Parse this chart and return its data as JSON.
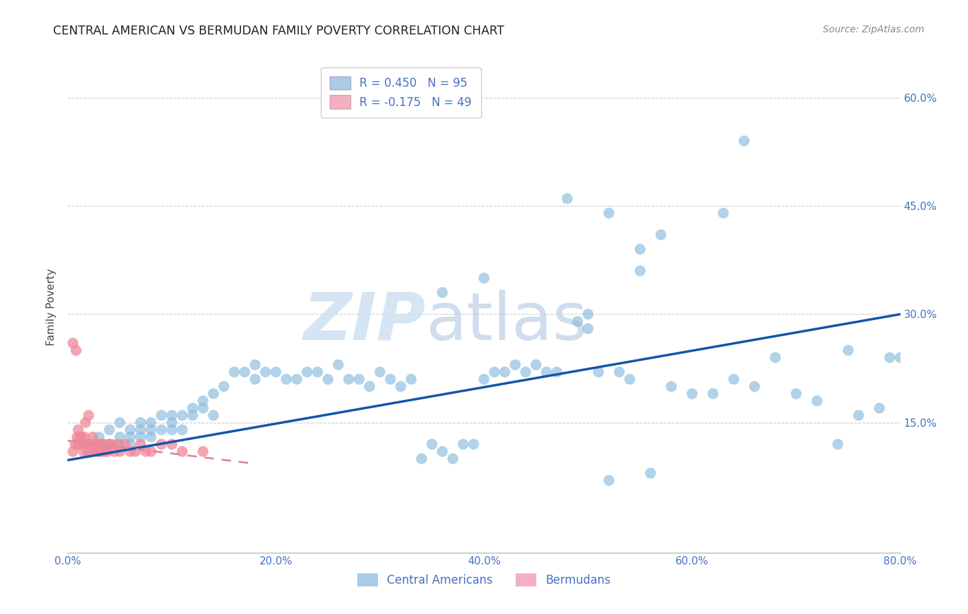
{
  "title": "CENTRAL AMERICAN VS BERMUDAN FAMILY POVERTY CORRELATION CHART",
  "source": "Source: ZipAtlas.com",
  "ylabel": "Family Poverty",
  "xlim": [
    0.0,
    0.8
  ],
  "ylim": [
    -0.03,
    0.65
  ],
  "xtick_vals": [
    0.0,
    0.2,
    0.4,
    0.6,
    0.8
  ],
  "xtick_labels": [
    "0.0%",
    "20.0%",
    "40.0%",
    "60.0%",
    "80.0%"
  ],
  "ytick_vals": [
    0.15,
    0.3,
    0.45,
    0.6
  ],
  "ytick_labels": [
    "15.0%",
    "30.0%",
    "45.0%",
    "60.0%"
  ],
  "R_blue": 0.45,
  "N_blue": 95,
  "R_pink": -0.175,
  "N_pink": 49,
  "blue_scatter_color": "#88bbdd",
  "pink_scatter_color": "#f08898",
  "blue_line_color": "#1155aa",
  "pink_line_color": "#e08898",
  "watermark_zip_color": "#ccdff0",
  "watermark_atlas_color": "#bbcfe8",
  "legend_box_color": "#a8cce4",
  "legend_pink_color": "#f4afc4",
  "tick_color": "#4472c4",
  "title_color": "#222222",
  "source_color": "#888888",
  "grid_color": "#cccccc",
  "blue_x": [
    0.02,
    0.03,
    0.03,
    0.04,
    0.04,
    0.05,
    0.05,
    0.05,
    0.06,
    0.06,
    0.06,
    0.07,
    0.07,
    0.07,
    0.08,
    0.08,
    0.08,
    0.09,
    0.09,
    0.1,
    0.1,
    0.1,
    0.11,
    0.11,
    0.12,
    0.12,
    0.13,
    0.13,
    0.14,
    0.14,
    0.15,
    0.16,
    0.17,
    0.18,
    0.18,
    0.19,
    0.2,
    0.21,
    0.22,
    0.23,
    0.24,
    0.25,
    0.26,
    0.27,
    0.28,
    0.29,
    0.3,
    0.31,
    0.32,
    0.33,
    0.34,
    0.35,
    0.36,
    0.37,
    0.38,
    0.39,
    0.4,
    0.41,
    0.42,
    0.43,
    0.44,
    0.45,
    0.46,
    0.47,
    0.48,
    0.49,
    0.5,
    0.51,
    0.52,
    0.53,
    0.54,
    0.55,
    0.56,
    0.58,
    0.6,
    0.62,
    0.64,
    0.65,
    0.66,
    0.68,
    0.7,
    0.72,
    0.74,
    0.75,
    0.76,
    0.78,
    0.79,
    0.8,
    0.52,
    0.57,
    0.55,
    0.4,
    0.36,
    0.5,
    0.63
  ],
  "blue_y": [
    0.12,
    0.11,
    0.13,
    0.12,
    0.14,
    0.12,
    0.13,
    0.15,
    0.12,
    0.14,
    0.13,
    0.13,
    0.15,
    0.14,
    0.13,
    0.15,
    0.14,
    0.14,
    0.16,
    0.15,
    0.14,
    0.16,
    0.16,
    0.14,
    0.17,
    0.16,
    0.18,
    0.17,
    0.19,
    0.16,
    0.2,
    0.22,
    0.22,
    0.23,
    0.21,
    0.22,
    0.22,
    0.21,
    0.21,
    0.22,
    0.22,
    0.21,
    0.23,
    0.21,
    0.21,
    0.2,
    0.22,
    0.21,
    0.2,
    0.21,
    0.1,
    0.12,
    0.11,
    0.1,
    0.12,
    0.12,
    0.21,
    0.22,
    0.22,
    0.23,
    0.22,
    0.23,
    0.22,
    0.22,
    0.46,
    0.29,
    0.28,
    0.22,
    0.07,
    0.22,
    0.21,
    0.36,
    0.08,
    0.2,
    0.19,
    0.19,
    0.21,
    0.54,
    0.2,
    0.24,
    0.19,
    0.18,
    0.12,
    0.25,
    0.16,
    0.17,
    0.24,
    0.24,
    0.44,
    0.41,
    0.39,
    0.35,
    0.33,
    0.3,
    0.44
  ],
  "pink_x": [
    0.005,
    0.005,
    0.007,
    0.008,
    0.009,
    0.01,
    0.01,
    0.011,
    0.012,
    0.013,
    0.014,
    0.015,
    0.016,
    0.017,
    0.018,
    0.019,
    0.02,
    0.021,
    0.022,
    0.023,
    0.024,
    0.025,
    0.026,
    0.027,
    0.028,
    0.029,
    0.03,
    0.031,
    0.032,
    0.033,
    0.034,
    0.035,
    0.036,
    0.038,
    0.04,
    0.042,
    0.045,
    0.048,
    0.05,
    0.055,
    0.06,
    0.065,
    0.07,
    0.075,
    0.08,
    0.09,
    0.1,
    0.11,
    0.13
  ],
  "pink_y": [
    0.11,
    0.26,
    0.12,
    0.25,
    0.13,
    0.12,
    0.14,
    0.12,
    0.13,
    0.13,
    0.12,
    0.11,
    0.13,
    0.15,
    0.12,
    0.11,
    0.16,
    0.12,
    0.12,
    0.11,
    0.13,
    0.12,
    0.12,
    0.11,
    0.12,
    0.11,
    0.12,
    0.11,
    0.12,
    0.12,
    0.11,
    0.12,
    0.11,
    0.11,
    0.12,
    0.12,
    0.11,
    0.12,
    0.11,
    0.12,
    0.11,
    0.11,
    0.12,
    0.11,
    0.11,
    0.12,
    0.12,
    0.11,
    0.11
  ],
  "blue_line_x": [
    0.0,
    0.8
  ],
  "blue_line_y": [
    0.098,
    0.3
  ],
  "pink_line_x": [
    0.0,
    0.18
  ],
  "pink_line_y": [
    0.125,
    0.093
  ]
}
